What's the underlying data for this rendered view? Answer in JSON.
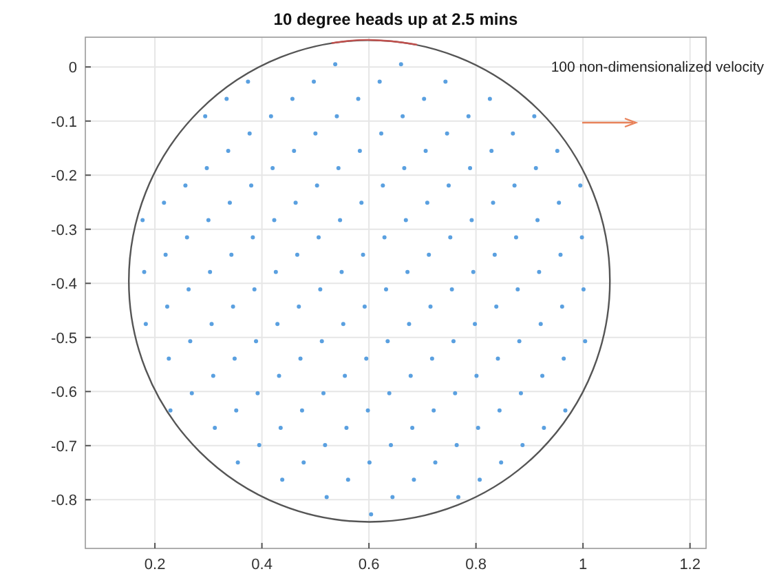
{
  "chart_data": {
    "type": "scatter",
    "title": "10 degree heads up at 2.5 mins",
    "annotations": [
      "100 non-dimensionalized velocity"
    ],
    "xlim": [
      0.07,
      1.23
    ],
    "ylim": [
      -0.89,
      0.055
    ],
    "xticks": [
      0.2,
      0.4,
      0.6,
      0.8,
      1,
      1.2
    ],
    "yticks": [
      -0.8,
      -0.7,
      -0.6,
      -0.5,
      -0.4,
      -0.3,
      -0.2,
      -0.1,
      0
    ],
    "grid": true,
    "series": [
      {
        "type": "line",
        "color": "#c0504d",
        "line_style": "solid",
        "x": [
          0.53,
          0.561,
          0.6,
          0.647,
          0.69
        ],
        "values": [
          0.044,
          0.048,
          0.05,
          0.047,
          0.041
        ]
      },
      {
        "color": "#5aa0e0",
        "marker": "circle",
        "x": [
          0.537,
          0.66,
          0.374,
          0.497,
          0.62,
          0.743,
          0.334,
          0.457,
          0.58,
          0.703,
          0.826,
          0.294,
          0.417,
          0.54,
          0.663,
          0.786,
          0.909,
          0.377,
          0.5,
          0.623,
          0.746,
          0.869,
          0.337,
          0.46,
          0.583,
          0.706,
          0.829,
          0.952,
          0.297,
          0.42,
          0.543,
          0.666,
          0.789,
          0.912,
          0.257,
          0.38,
          0.503,
          0.626,
          0.749,
          0.872,
          0.995,
          0.217,
          0.34,
          0.463,
          0.586,
          0.709,
          0.832,
          0.955,
          0.177,
          0.3,
          0.423,
          0.546,
          0.669,
          0.792,
          0.915,
          0.26,
          0.383,
          0.506,
          0.629,
          0.752,
          0.875,
          0.998,
          0.22,
          0.343,
          0.466,
          0.589,
          0.712,
          0.835,
          0.958,
          0.18,
          0.303,
          0.426,
          0.549,
          0.672,
          0.795,
          0.918,
          0.263,
          0.386,
          0.509,
          0.632,
          0.755,
          0.878,
          1.001,
          0.223,
          0.346,
          0.469,
          0.592,
          0.715,
          0.838,
          0.961,
          0.183,
          0.306,
          0.429,
          0.552,
          0.675,
          0.798,
          0.921,
          0.266,
          0.389,
          0.512,
          0.635,
          0.758,
          0.881,
          1.004,
          0.226,
          0.349,
          0.472,
          0.595,
          0.718,
          0.841,
          0.964,
          0.309,
          0.432,
          0.555,
          0.678,
          0.801,
          0.924,
          0.269,
          0.392,
          0.515,
          0.638,
          0.761,
          0.884,
          0.229,
          0.352,
          0.475,
          0.598,
          0.721,
          0.844,
          0.967,
          0.312,
          0.435,
          0.558,
          0.681,
          0.804,
          0.927,
          0.395,
          0.518,
          0.641,
          0.764,
          0.887,
          0.355,
          0.478,
          0.601,
          0.724,
          0.847,
          0.438,
          0.561,
          0.684,
          0.807,
          0.521,
          0.644,
          0.767,
          0.604
        ],
        "values": [
          0.005,
          0.005,
          -0.027,
          -0.027,
          -0.027,
          -0.027,
          -0.059,
          -0.059,
          -0.059,
          -0.059,
          -0.059,
          -0.091,
          -0.091,
          -0.091,
          -0.091,
          -0.091,
          -0.091,
          -0.123,
          -0.123,
          -0.123,
          -0.123,
          -0.123,
          -0.155,
          -0.155,
          -0.155,
          -0.155,
          -0.155,
          -0.155,
          -0.187,
          -0.187,
          -0.187,
          -0.187,
          -0.187,
          -0.187,
          -0.219,
          -0.219,
          -0.219,
          -0.219,
          -0.219,
          -0.219,
          -0.219,
          -0.251,
          -0.251,
          -0.251,
          -0.251,
          -0.251,
          -0.251,
          -0.251,
          -0.283,
          -0.283,
          -0.283,
          -0.283,
          -0.283,
          -0.283,
          -0.283,
          -0.315,
          -0.315,
          -0.315,
          -0.315,
          -0.315,
          -0.315,
          -0.315,
          -0.347,
          -0.347,
          -0.347,
          -0.347,
          -0.347,
          -0.347,
          -0.347,
          -0.379,
          -0.379,
          -0.379,
          -0.379,
          -0.379,
          -0.379,
          -0.379,
          -0.411,
          -0.411,
          -0.411,
          -0.411,
          -0.411,
          -0.411,
          -0.411,
          -0.443,
          -0.443,
          -0.443,
          -0.443,
          -0.443,
          -0.443,
          -0.443,
          -0.475,
          -0.475,
          -0.475,
          -0.475,
          -0.475,
          -0.475,
          -0.475,
          -0.507,
          -0.507,
          -0.507,
          -0.507,
          -0.507,
          -0.507,
          -0.507,
          -0.539,
          -0.539,
          -0.539,
          -0.539,
          -0.539,
          -0.539,
          -0.539,
          -0.571,
          -0.571,
          -0.571,
          -0.571,
          -0.571,
          -0.571,
          -0.603,
          -0.603,
          -0.603,
          -0.603,
          -0.603,
          -0.603,
          -0.635,
          -0.635,
          -0.635,
          -0.635,
          -0.635,
          -0.635,
          -0.635,
          -0.667,
          -0.667,
          -0.667,
          -0.667,
          -0.667,
          -0.667,
          -0.699,
          -0.699,
          -0.699,
          -0.699,
          -0.699,
          -0.731,
          -0.731,
          -0.731,
          -0.731,
          -0.731,
          -0.763,
          -0.763,
          -0.763,
          -0.763,
          -0.795,
          -0.795,
          -0.795,
          -0.827
        ]
      }
    ]
  }
}
